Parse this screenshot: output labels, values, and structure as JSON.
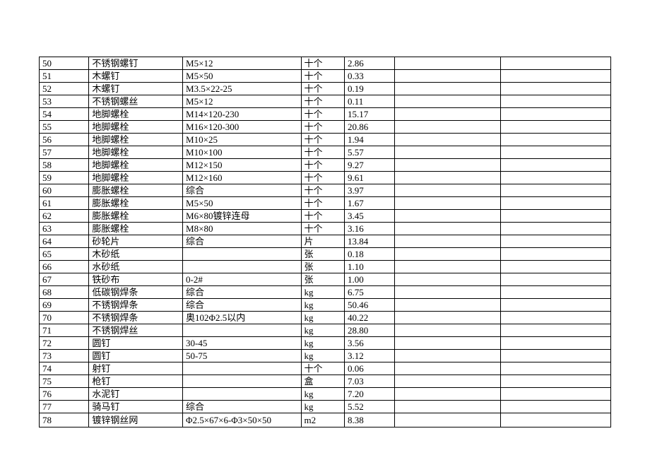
{
  "table": {
    "column_widths_pct": [
      8.7,
      16.4,
      20.7,
      7.6,
      8.8,
      18.5,
      19.3
    ],
    "border_color": "#000000",
    "background_color": "#ffffff",
    "text_color": "#000000",
    "font_family": "SimSun",
    "font_size_pt": 10,
    "rows": [
      [
        "50",
        "不锈钢螺钉",
        "M5×12",
        "十个",
        "2.86",
        "",
        ""
      ],
      [
        "51",
        "木螺钉",
        "M5×50",
        "十个",
        "0.33",
        "",
        ""
      ],
      [
        "52",
        "木螺钉",
        "M3.5×22-25",
        "十个",
        "0.19",
        "",
        ""
      ],
      [
        "53",
        "不锈钢螺丝",
        "M5×12",
        "十个",
        "0.11",
        "",
        ""
      ],
      [
        "54",
        "地脚螺栓",
        "M14×120-230",
        "十个",
        "15.17",
        "",
        ""
      ],
      [
        "55",
        "地脚螺栓",
        "M16×120-300",
        "十个",
        "20.86",
        "",
        ""
      ],
      [
        "56",
        "地脚螺栓",
        "M10×25",
        "十个",
        "1.94",
        "",
        ""
      ],
      [
        "57",
        "地脚螺栓",
        "M10×100",
        "十个",
        "5.57",
        "",
        ""
      ],
      [
        "58",
        "地脚螺栓",
        "M12×150",
        "十个",
        "9.27",
        "",
        ""
      ],
      [
        "59",
        "地脚螺栓",
        "M12×160",
        "十个",
        "9.61",
        "",
        ""
      ],
      [
        "60",
        "膨胀螺栓",
        "综合",
        "十个",
        "3.97",
        "",
        ""
      ],
      [
        "61",
        "膨胀螺栓",
        "M5×50",
        "十个",
        "1.67",
        "",
        ""
      ],
      [
        "62",
        "膨胀螺栓",
        "M6×80镀锌连母",
        "十个",
        "3.45",
        "",
        ""
      ],
      [
        "63",
        "膨胀螺栓",
        "M8×80",
        "十个",
        "3.16",
        "",
        ""
      ],
      [
        "64",
        "砂轮片",
        "综合",
        "片",
        "13.84",
        "",
        ""
      ],
      [
        "65",
        "木砂纸",
        "",
        "张",
        "0.18",
        "",
        ""
      ],
      [
        "66",
        "水砂纸",
        "",
        "张",
        "1.10",
        "",
        ""
      ],
      [
        "67",
        "铁砂布",
        "0-2#",
        "张",
        "1.00",
        "",
        ""
      ],
      [
        "68",
        "低碳钢焊条",
        "综合",
        "kg",
        "6.75",
        "",
        ""
      ],
      [
        "69",
        "不锈钢焊条",
        "综合",
        "kg",
        "50.46",
        "",
        ""
      ],
      [
        "70",
        "不锈钢焊条",
        "奥102Φ2.5以内",
        "kg",
        "40.22",
        "",
        ""
      ],
      [
        "71",
        "不锈钢焊丝",
        "",
        "kg",
        "28.80",
        "",
        ""
      ],
      [
        "72",
        "圆钉",
        "30-45",
        "kg",
        "3.56",
        "",
        ""
      ],
      [
        "73",
        "圆钉",
        "50-75",
        "kg",
        "3.12",
        "",
        ""
      ],
      [
        "74",
        "射钉",
        "",
        "十个",
        "0.06",
        "",
        ""
      ],
      [
        "75",
        "枪钉",
        "",
        "盒",
        "7.03",
        "",
        ""
      ],
      [
        "76",
        "水泥钉",
        "",
        "kg",
        "7.20",
        "",
        ""
      ],
      [
        "77",
        "骑马钉",
        "综合",
        "kg",
        "5.52",
        "",
        ""
      ],
      [
        "78",
        "镀锌钢丝网",
        "Φ2.5×67×6-Φ3×50×50",
        "m2",
        "8.38",
        "",
        ""
      ]
    ],
    "multiline_rows": [
      28
    ]
  }
}
